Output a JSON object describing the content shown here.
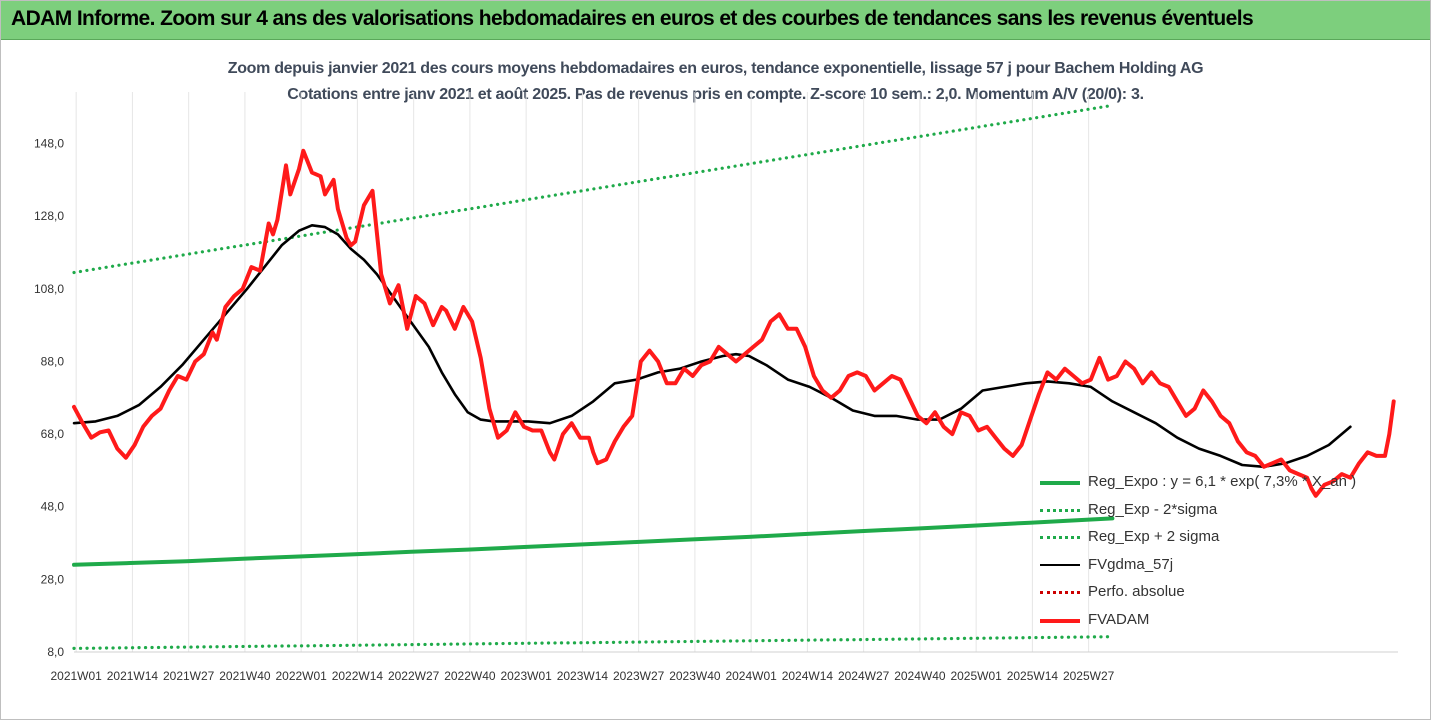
{
  "banner": {
    "title": "ADAM Informe. Zoom sur 4 ans des valorisations hebdomadaires en euros et des courbes de tendances sans les revenus éventuels"
  },
  "colors": {
    "banner_bg": "#7dcf7d",
    "green": "#1faa4a",
    "red": "#ff1a1a",
    "black": "#000000",
    "dotted_red": "#cc0000"
  },
  "chart_data": {
    "type": "line",
    "title": "Zoom depuis janvier 2021 des cours moyens hebdomadaires en euros, tendance exponentielle, lissage 57 j pour Bachem Holding AG",
    "subtitle": "Cotations entre janv 2021 et août 2025.  Pas de revenus pris en compte. Z-score 10 sem.: 2,0. Momentum A/V (20/0): 3.",
    "xlabel": "",
    "ylabel": "",
    "ylim": [
      8,
      160
    ],
    "y_ticks": [
      "8,0",
      "28,0",
      "48,0",
      "68,0",
      "88,0",
      "108,0",
      "128,0",
      "148,0"
    ],
    "y_tick_values": [
      8,
      28,
      48,
      68,
      88,
      108,
      128,
      148
    ],
    "x_ticks": [
      "2021W01",
      "2021W14",
      "2021W27",
      "2021W40",
      "2022W01",
      "2022W14",
      "2022W27",
      "2022W40",
      "2023W01",
      "2023W14",
      "2023W27",
      "2023W40",
      "2024W01",
      "2024W14",
      "2024W27",
      "2024W40",
      "2025W01",
      "2025W14",
      "2025W27"
    ],
    "grid": "vertical",
    "legend_position": "bottom-right",
    "series": [
      {
        "name": "Reg_Expo : y = 6,1 * exp( 7,3% * X_an )",
        "style": "solid-green",
        "points": [
          [
            0,
            32.0
          ],
          [
            13,
            32.5
          ],
          [
            26,
            33.0
          ],
          [
            39,
            33.7
          ],
          [
            52,
            34.3
          ],
          [
            65,
            34.9
          ],
          [
            78,
            35.6
          ],
          [
            91,
            36.2
          ],
          [
            104,
            36.9
          ],
          [
            117,
            37.6
          ],
          [
            130,
            38.3
          ],
          [
            143,
            39.0
          ],
          [
            156,
            39.7
          ],
          [
            169,
            40.5
          ],
          [
            182,
            41.3
          ],
          [
            195,
            42.0
          ],
          [
            208,
            42.8
          ],
          [
            221,
            43.6
          ],
          [
            234,
            44.4
          ],
          [
            240,
            44.8
          ]
        ]
      },
      {
        "name": "Reg_Exp - 2*sigma",
        "style": "dotted-green",
        "points": [
          [
            0,
            9.0
          ],
          [
            240,
            12.2
          ]
        ]
      },
      {
        "name": "Reg_Exp + 2 sigma",
        "style": "dotted-green",
        "points": [
          [
            0,
            112.5
          ],
          [
            240,
            158.5
          ]
        ]
      },
      {
        "name": "FVgdma_57j",
        "style": "solid-black",
        "points": [
          [
            0,
            71
          ],
          [
            5,
            71.5
          ],
          [
            10,
            73
          ],
          [
            15,
            76
          ],
          [
            20,
            81
          ],
          [
            25,
            87
          ],
          [
            30,
            94
          ],
          [
            35,
            101
          ],
          [
            40,
            108
          ],
          [
            44,
            114
          ],
          [
            48,
            120
          ],
          [
            52,
            124
          ],
          [
            55,
            125.5
          ],
          [
            58,
            125
          ],
          [
            61,
            123
          ],
          [
            64,
            119
          ],
          [
            67,
            116
          ],
          [
            70,
            112
          ],
          [
            73,
            107
          ],
          [
            76,
            102
          ],
          [
            79,
            97
          ],
          [
            82,
            92
          ],
          [
            85,
            85
          ],
          [
            88,
            79
          ],
          [
            91,
            74
          ],
          [
            94,
            72
          ],
          [
            97,
            71.5
          ],
          [
            100,
            71.5
          ],
          [
            105,
            71.5
          ],
          [
            110,
            71
          ],
          [
            115,
            73
          ],
          [
            120,
            77
          ],
          [
            125,
            82
          ],
          [
            130,
            83
          ],
          [
            135,
            85
          ],
          [
            140,
            86
          ],
          [
            145,
            88
          ],
          [
            150,
            89.5
          ],
          [
            153,
            90
          ],
          [
            156,
            89.5
          ],
          [
            160,
            87
          ],
          [
            165,
            83
          ],
          [
            170,
            81
          ],
          [
            175,
            78
          ],
          [
            180,
            74.5
          ],
          [
            185,
            73
          ],
          [
            190,
            73
          ],
          [
            195,
            72
          ],
          [
            200,
            72
          ],
          [
            205,
            75
          ],
          [
            210,
            80
          ],
          [
            215,
            81
          ],
          [
            220,
            82
          ],
          [
            225,
            82.5
          ],
          [
            230,
            82
          ],
          [
            235,
            81
          ],
          [
            240,
            77
          ],
          [
            245,
            74
          ],
          [
            250,
            71
          ],
          [
            255,
            67
          ],
          [
            260,
            64
          ],
          [
            265,
            62
          ],
          [
            270,
            59.5
          ],
          [
            275,
            59
          ],
          [
            280,
            60
          ],
          [
            285,
            62
          ],
          [
            290,
            65
          ],
          [
            295,
            70
          ]
        ]
      },
      {
        "name": "Perfo. absolue",
        "style": "dotted-red",
        "points": []
      },
      {
        "name": "FVADAM",
        "style": "solid-red-thick",
        "points": [
          [
            0,
            75.5
          ],
          [
            2,
            71
          ],
          [
            4,
            67
          ],
          [
            6,
            68.5
          ],
          [
            8,
            69
          ],
          [
            10,
            64
          ],
          [
            12,
            61.5
          ],
          [
            14,
            65
          ],
          [
            16,
            70
          ],
          [
            18,
            73
          ],
          [
            20,
            75
          ],
          [
            22,
            80
          ],
          [
            24,
            84
          ],
          [
            26,
            83
          ],
          [
            28,
            88
          ],
          [
            30,
            90
          ],
          [
            32,
            96
          ],
          [
            33,
            94
          ],
          [
            35,
            103
          ],
          [
            37,
            106
          ],
          [
            39,
            108
          ],
          [
            41,
            114
          ],
          [
            43,
            113
          ],
          [
            45,
            126
          ],
          [
            46,
            123
          ],
          [
            47,
            127
          ],
          [
            49,
            142
          ],
          [
            50,
            134
          ],
          [
            52,
            141
          ],
          [
            53,
            146
          ],
          [
            55,
            140
          ],
          [
            57,
            139
          ],
          [
            58,
            134
          ],
          [
            60,
            138
          ],
          [
            61,
            130
          ],
          [
            63,
            122
          ],
          [
            64,
            120
          ],
          [
            65,
            121
          ],
          [
            67,
            131
          ],
          [
            69,
            135
          ],
          [
            71,
            112
          ],
          [
            73,
            104
          ],
          [
            75,
            109
          ],
          [
            77,
            97
          ],
          [
            79,
            106
          ],
          [
            81,
            104
          ],
          [
            83,
            98
          ],
          [
            85,
            103
          ],
          [
            86,
            102
          ],
          [
            88,
            97
          ],
          [
            90,
            103
          ],
          [
            92,
            99
          ],
          [
            94,
            89
          ],
          [
            96,
            75
          ],
          [
            98,
            67
          ],
          [
            100,
            69
          ],
          [
            102,
            74
          ],
          [
            104,
            70
          ],
          [
            106,
            69
          ],
          [
            108,
            69
          ],
          [
            110,
            63
          ],
          [
            111,
            61
          ],
          [
            113,
            68
          ],
          [
            115,
            71
          ],
          [
            117,
            67
          ],
          [
            119,
            67
          ],
          [
            120,
            63
          ],
          [
            121,
            60
          ],
          [
            123,
            61
          ],
          [
            125,
            66
          ],
          [
            127,
            70
          ],
          [
            129,
            73
          ],
          [
            131,
            88
          ],
          [
            133,
            91
          ],
          [
            135,
            88
          ],
          [
            137,
            82
          ],
          [
            139,
            82
          ],
          [
            141,
            86
          ],
          [
            143,
            84
          ],
          [
            145,
            87
          ],
          [
            147,
            88
          ],
          [
            149,
            92
          ],
          [
            151,
            90
          ],
          [
            153,
            88
          ],
          [
            155,
            90
          ],
          [
            157,
            92
          ],
          [
            159,
            94
          ],
          [
            161,
            99
          ],
          [
            163,
            101
          ],
          [
            165,
            97
          ],
          [
            167,
            97
          ],
          [
            169,
            92
          ],
          [
            171,
            84
          ],
          [
            173,
            80
          ],
          [
            175,
            78
          ],
          [
            177,
            80
          ],
          [
            179,
            84
          ],
          [
            181,
            85
          ],
          [
            183,
            84
          ],
          [
            185,
            80
          ],
          [
            187,
            82
          ],
          [
            189,
            84
          ],
          [
            191,
            83
          ],
          [
            193,
            78
          ],
          [
            195,
            73
          ],
          [
            197,
            71
          ],
          [
            199,
            74
          ],
          [
            201,
            70
          ],
          [
            203,
            68
          ],
          [
            205,
            74
          ],
          [
            207,
            73
          ],
          [
            209,
            69
          ],
          [
            211,
            70
          ],
          [
            213,
            67
          ],
          [
            215,
            64
          ],
          [
            217,
            62
          ],
          [
            219,
            65
          ],
          [
            221,
            72
          ],
          [
            223,
            79
          ],
          [
            225,
            85
          ],
          [
            227,
            83
          ],
          [
            229,
            86
          ],
          [
            231,
            84
          ],
          [
            233,
            82
          ],
          [
            235,
            83
          ],
          [
            237,
            89
          ],
          [
            239,
            83
          ],
          [
            241,
            84
          ],
          [
            243,
            88
          ],
          [
            245,
            86
          ],
          [
            247,
            82
          ],
          [
            249,
            85
          ],
          [
            251,
            82
          ],
          [
            253,
            81
          ],
          [
            255,
            77
          ],
          [
            257,
            73
          ],
          [
            259,
            75
          ],
          [
            261,
            80
          ],
          [
            263,
            77
          ],
          [
            265,
            73
          ],
          [
            267,
            71
          ],
          [
            269,
            66
          ],
          [
            271,
            63
          ],
          [
            273,
            62
          ],
          [
            275,
            59
          ],
          [
            277,
            60
          ],
          [
            279,
            61
          ],
          [
            281,
            58
          ],
          [
            283,
            57
          ],
          [
            285,
            56
          ],
          [
            286,
            53
          ],
          [
            287,
            51
          ],
          [
            289,
            54
          ],
          [
            291,
            55
          ],
          [
            293,
            57
          ],
          [
            295,
            56
          ],
          [
            297,
            60
          ],
          [
            299,
            63
          ],
          [
            301,
            62
          ],
          [
            303,
            62
          ],
          [
            304,
            68
          ],
          [
            305,
            77
          ]
        ]
      }
    ]
  },
  "legend": {
    "items": [
      {
        "label": "Reg_Expo : y = 6,1 * exp( 7,3% * X_an )",
        "style": "solid-green"
      },
      {
        "label": "Reg_Exp - 2*sigma",
        "style": "dotted-green"
      },
      {
        "label": "Reg_Exp + 2 sigma",
        "style": "dotted-green"
      },
      {
        "label": "FVgdma_57j",
        "style": "solid-black"
      },
      {
        "label": "Perfo. absolue",
        "style": "dotted-red"
      },
      {
        "label": "FVADAM",
        "style": "solid-red-thick"
      }
    ]
  }
}
